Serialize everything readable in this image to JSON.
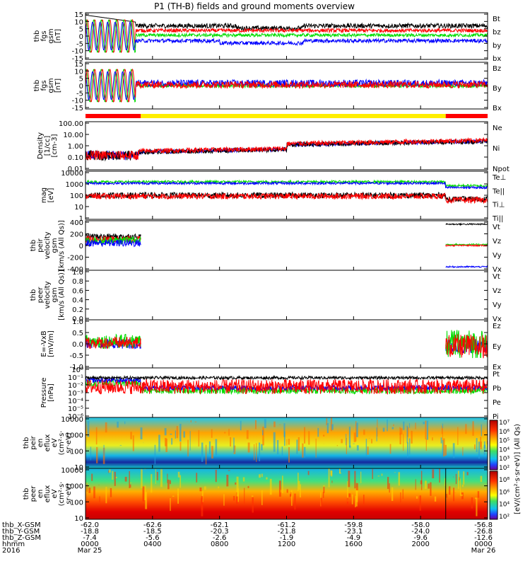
{
  "title": "P1 (TH-B) fields and ground moments overview",
  "colors": {
    "black": "#000000",
    "red": "#ff0000",
    "green": "#00dd00",
    "blue": "#0000ff",
    "yellow": "#ffee00",
    "cyan": "#00ccee"
  },
  "chart_data": {
    "type": "line",
    "xlim_hours": [
      0,
      24
    ],
    "panels": [
      {
        "ylabel": [
          "thb",
          "fgs",
          "gsm",
          "[nT]"
        ],
        "ylim": [
          -15,
          15
        ],
        "yticks": [
          "15",
          "10",
          "5",
          "0",
          "-5",
          "-10",
          "-15"
        ],
        "legend": [
          {
            "name": "Bt",
            "color": "black"
          },
          {
            "name": "bz",
            "color": "red"
          },
          {
            "name": "by",
            "color": "green"
          },
          {
            "name": "bx",
            "color": "blue"
          }
        ]
      },
      {
        "ylabel": [
          "thb",
          "fgs",
          "gsm",
          "[nT]"
        ],
        "ylim": [
          -15,
          15
        ],
        "yticks": [
          "15",
          "10",
          "5",
          "0",
          "-5",
          "-10",
          "-15"
        ],
        "legend": [
          {
            "name": "Bz",
            "color": "red"
          },
          {
            "name": "By",
            "color": "green"
          },
          {
            "name": "Bx",
            "color": "blue"
          }
        ]
      },
      {
        "ylabel": [
          "Density",
          "[1/cc]",
          "[cm-3]"
        ],
        "ylim": [
          0.01,
          100
        ],
        "log": true,
        "yticks": [
          "100.00",
          "10.00",
          "1.00",
          "0.10",
          "0.01"
        ],
        "legend": [
          {
            "name": "Ne",
            "color": "red"
          },
          {
            "name": "Ni",
            "color": "black"
          },
          {
            "name": "Npot",
            "color": "blue"
          }
        ]
      },
      {
        "ylabel": [
          "mag",
          "[eV]"
        ],
        "ylim": [
          1,
          10000
        ],
        "log": true,
        "yticks": [
          "10000",
          "1000",
          "100",
          "10",
          "1"
        ],
        "legend": [
          {
            "name": "Te⊥",
            "color": "red"
          },
          {
            "name": "Te||",
            "color": "black"
          },
          {
            "name": "Ti⊥",
            "color": "blue"
          },
          {
            "name": "Ti||",
            "color": "green"
          }
        ]
      },
      {
        "ylabel": [
          "thb",
          "peir",
          "velocity",
          "gsm",
          "[km/s (All Qs)]"
        ],
        "ylim": [
          -400,
          400
        ],
        "yticks": [
          "400",
          "200",
          "0",
          "-200",
          "-400"
        ],
        "legend": [
          {
            "name": "Vt",
            "color": "black"
          },
          {
            "name": "Vz",
            "color": "red"
          },
          {
            "name": "Vy",
            "color": "green"
          },
          {
            "name": "Vx",
            "color": "blue"
          }
        ]
      },
      {
        "ylabel": [
          "thb",
          "peer",
          "velocity",
          "gsm",
          "[km/s (All Qs)]"
        ],
        "ylim": [
          0,
          1
        ],
        "yticks": [
          "1.0",
          "0.8",
          "0.6",
          "0.4",
          "0.2",
          "0.0"
        ],
        "legend": [
          {
            "name": "Vt",
            "color": "black"
          },
          {
            "name": "Vz",
            "color": "red"
          },
          {
            "name": "Vy",
            "color": "green"
          },
          {
            "name": "Vx",
            "color": "blue"
          }
        ]
      },
      {
        "ylabel": [
          "E=-VxB",
          "[mV/m]"
        ],
        "ylim": [
          -1,
          1
        ],
        "yticks": [
          "1.0",
          "0.5",
          "0.0",
          "-0.5",
          "-1.0"
        ],
        "legend": [
          {
            "name": "Ez",
            "color": "red"
          },
          {
            "name": "Ey",
            "color": "green"
          },
          {
            "name": "Ex",
            "color": "blue"
          }
        ]
      },
      {
        "ylabel": [
          "Pressure",
          "[nPa]"
        ],
        "ylim": [
          1e-06,
          1
        ],
        "log": true,
        "yticks": [
          "10⁰",
          "10⁻¹",
          "10⁻²",
          "10⁻³",
          "10⁻⁴",
          "10⁻⁵",
          "10⁻⁶"
        ],
        "legend": [
          {
            "name": "Pt",
            "color": "black"
          },
          {
            "name": "Pb",
            "color": "red"
          },
          {
            "name": "Pe",
            "color": "green"
          },
          {
            "name": "Pi",
            "color": "blue"
          }
        ]
      },
      {
        "ylabel": [
          "thb",
          "peir",
          "en",
          "eflux",
          "eV",
          "(cm²·s·",
          "sr·eV)"
        ],
        "ylim": [
          5,
          30000
        ],
        "log": true,
        "spectrogram": true,
        "yticks": [
          "10000",
          "1000",
          "100",
          "10"
        ]
      },
      {
        "ylabel": [
          "thb",
          "peer",
          "en",
          "eflux",
          "eV",
          "(cm²·s·",
          "sr·eV)"
        ],
        "ylim": [
          5,
          30000
        ],
        "log": true,
        "spectrogram": true,
        "yticks": [
          "10000",
          "1000",
          "100",
          "10"
        ]
      }
    ],
    "colorbar": {
      "label": "[eV/(cm²·s·sr·eV)]  (All Qs)",
      "ticks_top": [
        "10⁷",
        "10⁶",
        "10⁵",
        "10⁴",
        "10³",
        "10²"
      ],
      "ticks_bottom": [
        "10⁸",
        "10⁶",
        "10⁴",
        "10²"
      ]
    },
    "xaxis": {
      "row_labels": [
        "thb_X-GSM",
        "thb_Y-GSM",
        "thb_Z-GSM",
        "hhmm",
        "2016"
      ],
      "columns": [
        {
          "hour": 0,
          "x": "-62.0",
          "y": "-18.8",
          "z": "-7.4",
          "hhmm": "0000",
          "date": "Mar 25"
        },
        {
          "hour": 4,
          "x": "-62.6",
          "y": "-18.5",
          "z": "-5.6",
          "hhmm": "0400",
          "date": ""
        },
        {
          "hour": 8,
          "x": "-62.1",
          "y": "-20.3",
          "z": "-2.6",
          "hhmm": "0800",
          "date": ""
        },
        {
          "hour": 12,
          "x": "-61.2",
          "y": "-21.8",
          "z": "-1.9",
          "hhmm": "1200",
          "date": ""
        },
        {
          "hour": 16,
          "x": "-59.8",
          "y": "-23.1",
          "z": "-4.9",
          "hhmm": "1600",
          "date": ""
        },
        {
          "hour": 20,
          "x": "-58.0",
          "y": "-24.0",
          "z": "-9.6",
          "hhmm": "2000",
          "date": ""
        },
        {
          "hour": 24,
          "x": "-56.8",
          "y": "-26.8",
          "z": "-12.6",
          "hhmm": "0000",
          "date": "Mar 26"
        }
      ]
    }
  }
}
